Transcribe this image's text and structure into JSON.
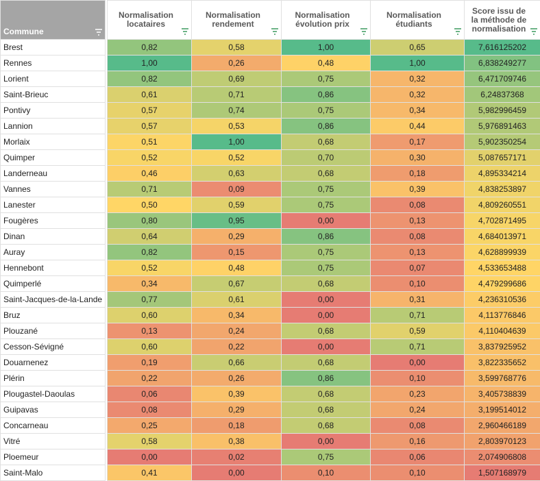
{
  "headers": {
    "commune": "Commune",
    "locataires": "Normalisation locataires",
    "rendement": "Normalisation rendement",
    "evolution": "Normalisation évolution prix",
    "etudiants": "Normalisation étudiants",
    "score": "Score issu de la méthode de normalisation"
  },
  "rows": [
    [
      "Brest",
      "0,82",
      "0,58",
      "1,00",
      "0,65",
      "7,616125202"
    ],
    [
      "Rennes",
      "1,00",
      "0,26",
      "0,48",
      "1,00",
      "6,838249277"
    ],
    [
      "Lorient",
      "0,82",
      "0,69",
      "0,75",
      "0,32",
      "6,471709746"
    ],
    [
      "Saint-Brieuc",
      "0,61",
      "0,71",
      "0,86",
      "0,32",
      "6,24837368"
    ],
    [
      "Pontivy",
      "0,57",
      "0,74",
      "0,75",
      "0,34",
      "5,982996459"
    ],
    [
      "Lannion",
      "0,57",
      "0,53",
      "0,86",
      "0,44",
      "5,976891463"
    ],
    [
      "Morlaix",
      "0,51",
      "1,00",
      "0,68",
      "0,17",
      "5,902350254"
    ],
    [
      "Quimper",
      "0,52",
      "0,52",
      "0,70",
      "0,30",
      "5,087657171"
    ],
    [
      "Landerneau",
      "0,46",
      "0,63",
      "0,68",
      "0,18",
      "4,895334214"
    ],
    [
      "Vannes",
      "0,71",
      "0,09",
      "0,75",
      "0,39",
      "4,838253897"
    ],
    [
      "Lanester",
      "0,50",
      "0,59",
      "0,75",
      "0,08",
      "4,809260551"
    ],
    [
      "Fougères",
      "0,80",
      "0,95",
      "0,00",
      "0,13",
      "4,702871495"
    ],
    [
      "Dinan",
      "0,64",
      "0,29",
      "0,86",
      "0,08",
      "4,684013971"
    ],
    [
      "Auray",
      "0,82",
      "0,15",
      "0,75",
      "0,13",
      "4,628899939"
    ],
    [
      "Hennebont",
      "0,52",
      "0,48",
      "0,75",
      "0,07",
      "4,533653488"
    ],
    [
      "Quimperlé",
      "0,34",
      "0,67",
      "0,68",
      "0,10",
      "4,479299686"
    ],
    [
      "Saint-Jacques-de-la-Lande",
      "0,77",
      "0,61",
      "0,00",
      "0,31",
      "4,236310536"
    ],
    [
      "Bruz",
      "0,60",
      "0,34",
      "0,00",
      "0,71",
      "4,113776846"
    ],
    [
      "Plouzané",
      "0,13",
      "0,24",
      "0,68",
      "0,59",
      "4,110404639"
    ],
    [
      "Cesson-Sévigné",
      "0,60",
      "0,22",
      "0,00",
      "0,71",
      "3,837925952"
    ],
    [
      "Douarnenez",
      "0,19",
      "0,66",
      "0,68",
      "0,00",
      "3,822335652"
    ],
    [
      "Plérin",
      "0,22",
      "0,26",
      "0,86",
      "0,10",
      "3,599768776"
    ],
    [
      "Plougastel-Daoulas",
      "0,06",
      "0,39",
      "0,68",
      "0,23",
      "3,405738839"
    ],
    [
      "Guipavas",
      "0,08",
      "0,29",
      "0,68",
      "0,24",
      "3,199514012"
    ],
    [
      "Concarneau",
      "0,25",
      "0,18",
      "0,68",
      "0,08",
      "2,960466189"
    ],
    [
      "Vitré",
      "0,58",
      "0,38",
      "0,00",
      "0,16",
      "2,803970123"
    ],
    [
      "Ploemeur",
      "0,00",
      "0,02",
      "0,75",
      "0,06",
      "2,074906808"
    ],
    [
      "Saint-Malo",
      "0,41",
      "0,00",
      "0,10",
      "0,10",
      "1,507168979"
    ]
  ],
  "colors": {
    "green": "#57bb8a",
    "yellow": "#ffd666",
    "red": "#e67c73",
    "header_commune_bg": "#a5a5a5",
    "header_text": "#595959",
    "filter_icon": "#3c9a5f"
  },
  "icons": {
    "filter": "filter-icon"
  }
}
